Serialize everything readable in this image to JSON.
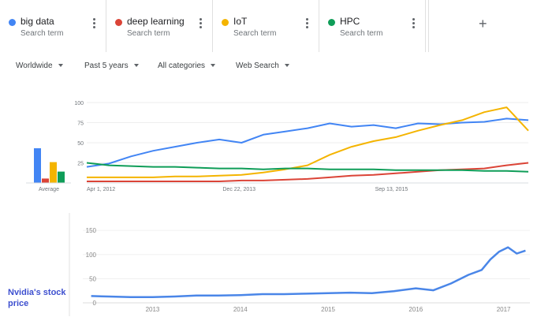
{
  "terms": [
    {
      "label": "big data",
      "sub": "Search term",
      "color": "#4285f4"
    },
    {
      "label": "deep learning",
      "sub": "Search term",
      "color": "#db4437"
    },
    {
      "label": "IoT",
      "sub": "Search term",
      "color": "#f4b400"
    },
    {
      "label": "HPC",
      "sub": "Search term",
      "color": "#0f9d58"
    }
  ],
  "add_term_icon": "plus-icon",
  "filters": {
    "region": "Worldwide",
    "time": "Past 5 years",
    "category": "All categories",
    "property": "Web Search"
  },
  "average_label": "Average",
  "stock_caption": "Nvidia's stock price",
  "chart_data": [
    {
      "type": "line",
      "title": "",
      "x_tick_labels": [
        "Apr 1, 2012",
        "Dec 22, 2013",
        "Sep 13, 2015"
      ],
      "x_tick_dates": [
        "2012-04-01",
        "2013-12-22",
        "2015-09-13"
      ],
      "x_range": [
        "2012-04-01",
        "2017-04-01"
      ],
      "ylim": [
        0,
        100
      ],
      "y_ticks": [
        25,
        50,
        75,
        100
      ],
      "grid": true,
      "legend": "top",
      "x": [
        "2012-04",
        "2012-07",
        "2012-10",
        "2013-01",
        "2013-04",
        "2013-07",
        "2013-10",
        "2014-01",
        "2014-04",
        "2014-07",
        "2014-10",
        "2015-01",
        "2015-04",
        "2015-07",
        "2015-10",
        "2016-01",
        "2016-04",
        "2016-07",
        "2016-10",
        "2017-01",
        "2017-04"
      ],
      "series": [
        {
          "name": "big data",
          "values": [
            20,
            24,
            33,
            40,
            45,
            50,
            54,
            50,
            60,
            64,
            68,
            74,
            70,
            72,
            68,
            74,
            73,
            75,
            76,
            80,
            78
          ]
        },
        {
          "name": "deep learning",
          "values": [
            2,
            2,
            2,
            2,
            2,
            2,
            2,
            3,
            3,
            4,
            5,
            7,
            9,
            10,
            12,
            14,
            16,
            17,
            18,
            22,
            25
          ]
        },
        {
          "name": "IoT",
          "values": [
            7,
            7,
            7,
            7,
            8,
            8,
            9,
            10,
            13,
            17,
            22,
            35,
            45,
            52,
            57,
            65,
            72,
            78,
            88,
            94,
            65
          ]
        },
        {
          "name": "HPC",
          "values": [
            25,
            22,
            21,
            20,
            20,
            19,
            18,
            18,
            17,
            18,
            18,
            17,
            17,
            17,
            16,
            16,
            16,
            16,
            15,
            15,
            14
          ]
        }
      ],
      "averages": [
        {
          "name": "big data",
          "value": 55
        },
        {
          "name": "deep learning",
          "value": 7
        },
        {
          "name": "IoT",
          "value": 33
        },
        {
          "name": "HPC",
          "value": 18
        }
      ]
    },
    {
      "type": "line",
      "title": "",
      "x_ticks": [
        2013,
        2014,
        2015,
        2016,
        2017
      ],
      "x_range": [
        2012.25,
        2017.3
      ],
      "ylim": [
        0,
        160
      ],
      "y_ticks": [
        0,
        50,
        100,
        150
      ],
      "grid": true,
      "x": [
        2012.3,
        2012.5,
        2012.75,
        2013.0,
        2013.25,
        2013.5,
        2013.75,
        2014.0,
        2014.25,
        2014.5,
        2014.75,
        2015.0,
        2015.25,
        2015.5,
        2015.75,
        2016.0,
        2016.2,
        2016.4,
        2016.6,
        2016.75,
        2016.85,
        2016.95,
        2017.05,
        2017.15,
        2017.25
      ],
      "series": [
        {
          "name": "",
          "values": [
            14,
            13,
            12,
            12,
            13,
            15,
            15,
            16,
            18,
            18,
            19,
            20,
            21,
            20,
            24,
            30,
            26,
            40,
            58,
            68,
            90,
            106,
            115,
            102,
            108
          ]
        }
      ]
    }
  ]
}
